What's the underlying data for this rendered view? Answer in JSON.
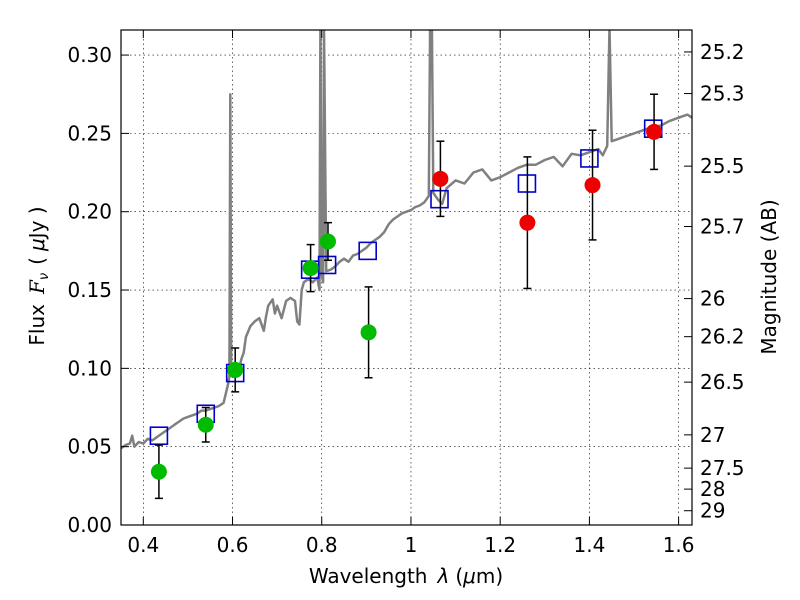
{
  "chart_data": {
    "type": "scatter",
    "xlabel_text": "Wavelength",
    "xlabel_symbol": "λ",
    "xlabel_unit_open": "(",
    "xlabel_unit_mu": "μ",
    "xlabel_unit_rest": "m)",
    "ylabel_text": "Flux",
    "ylabel_symbol_F": "F",
    "ylabel_symbol_sub": "ν",
    "ylabel_unit_open": "(",
    "ylabel_unit_mu": "μ",
    "ylabel_unit_rest": "Jy )",
    "y2label": "Magnitude (AB)",
    "xlim": [
      0.35,
      1.63
    ],
    "ylim": [
      0.0,
      0.316
    ],
    "grid": true,
    "x_ticks": [
      {
        "value": 0.4,
        "label": "0.4"
      },
      {
        "value": 0.6,
        "label": "0.6"
      },
      {
        "value": 0.8,
        "label": "0.8"
      },
      {
        "value": 1.0,
        "label": "1"
      },
      {
        "value": 1.2,
        "label": "1.2"
      },
      {
        "value": 1.4,
        "label": "1.4"
      },
      {
        "value": 1.6,
        "label": "1.6"
      }
    ],
    "y_ticks": [
      {
        "value": 0.0,
        "label": "0.00"
      },
      {
        "value": 0.05,
        "label": "0.05"
      },
      {
        "value": 0.1,
        "label": "0.10"
      },
      {
        "value": 0.15,
        "label": "0.15"
      },
      {
        "value": 0.2,
        "label": "0.20"
      },
      {
        "value": 0.25,
        "label": "0.25"
      },
      {
        "value": 0.3,
        "label": "0.30"
      }
    ],
    "y2_ticks": [
      {
        "value": 25.2,
        "label": "25.2"
      },
      {
        "value": 25.3,
        "label": "25.3"
      },
      {
        "value": 25.5,
        "label": "25.5"
      },
      {
        "value": 25.7,
        "label": "25.7"
      },
      {
        "value": 26.0,
        "label": "26"
      },
      {
        "value": 26.2,
        "label": "26.2"
      },
      {
        "value": 26.5,
        "label": "26.5"
      },
      {
        "value": 27.0,
        "label": "27"
      },
      {
        "value": 27.5,
        "label": "27.5"
      },
      {
        "value": 28.0,
        "label": "28"
      },
      {
        "value": 29.0,
        "label": "29"
      }
    ],
    "colors": {
      "sed": "#808080",
      "model_box": "#0000cc",
      "green": "#00bb00",
      "red": "#ee0000",
      "errorbar": "#000000"
    },
    "sed_model": [
      [
        0.35,
        0.049
      ],
      [
        0.36,
        0.051
      ],
      [
        0.37,
        0.052
      ],
      [
        0.375,
        0.057
      ],
      [
        0.38,
        0.05
      ],
      [
        0.39,
        0.053
      ],
      [
        0.4,
        0.052
      ],
      [
        0.41,
        0.055
      ],
      [
        0.42,
        0.054
      ],
      [
        0.43,
        0.056
      ],
      [
        0.44,
        0.058
      ],
      [
        0.45,
        0.06
      ],
      [
        0.46,
        0.062
      ],
      [
        0.47,
        0.064
      ],
      [
        0.48,
        0.066
      ],
      [
        0.49,
        0.068
      ],
      [
        0.5,
        0.069
      ],
      [
        0.51,
        0.07
      ],
      [
        0.52,
        0.071
      ],
      [
        0.53,
        0.073
      ],
      [
        0.54,
        0.073
      ],
      [
        0.55,
        0.074
      ],
      [
        0.56,
        0.075
      ],
      [
        0.57,
        0.076
      ],
      [
        0.58,
        0.078
      ],
      [
        0.59,
        0.09
      ],
      [
        0.593,
        0.095
      ],
      [
        0.595,
        0.275
      ],
      [
        0.597,
        0.095
      ],
      [
        0.6,
        0.096
      ],
      [
        0.61,
        0.097
      ],
      [
        0.615,
        0.1
      ],
      [
        0.62,
        0.106
      ],
      [
        0.625,
        0.11
      ],
      [
        0.63,
        0.12
      ],
      [
        0.64,
        0.127
      ],
      [
        0.65,
        0.13
      ],
      [
        0.66,
        0.132
      ],
      [
        0.67,
        0.124
      ],
      [
        0.675,
        0.133
      ],
      [
        0.68,
        0.14
      ],
      [
        0.69,
        0.144
      ],
      [
        0.695,
        0.135
      ],
      [
        0.7,
        0.14
      ],
      [
        0.71,
        0.132
      ],
      [
        0.72,
        0.143
      ],
      [
        0.73,
        0.145
      ],
      [
        0.74,
        0.143
      ],
      [
        0.745,
        0.13
      ],
      [
        0.75,
        0.128
      ],
      [
        0.755,
        0.15
      ],
      [
        0.76,
        0.155
      ],
      [
        0.77,
        0.157
      ],
      [
        0.78,
        0.155
      ],
      [
        0.79,
        0.158
      ],
      [
        0.795,
        0.15
      ],
      [
        0.797,
        0.318
      ],
      [
        0.8,
        0.16
      ],
      [
        0.803,
        0.155
      ],
      [
        0.805,
        0.318
      ],
      [
        0.81,
        0.162
      ],
      [
        0.82,
        0.163
      ],
      [
        0.83,
        0.165
      ],
      [
        0.84,
        0.168
      ],
      [
        0.85,
        0.17
      ],
      [
        0.86,
        0.168
      ],
      [
        0.87,
        0.172
      ],
      [
        0.88,
        0.173
      ],
      [
        0.89,
        0.175
      ],
      [
        0.9,
        0.177
      ],
      [
        0.91,
        0.18
      ],
      [
        0.92,
        0.182
      ],
      [
        0.93,
        0.184
      ],
      [
        0.94,
        0.187
      ],
      [
        0.95,
        0.192
      ],
      [
        0.96,
        0.195
      ],
      [
        0.97,
        0.197
      ],
      [
        0.98,
        0.199
      ],
      [
        0.99,
        0.2
      ],
      [
        1.0,
        0.201
      ],
      [
        1.01,
        0.203
      ],
      [
        1.02,
        0.204
      ],
      [
        1.03,
        0.206
      ],
      [
        1.04,
        0.21
      ],
      [
        1.043,
        0.318
      ],
      [
        1.047,
        0.318
      ],
      [
        1.05,
        0.212
      ],
      [
        1.06,
        0.208
      ],
      [
        1.07,
        0.205
      ],
      [
        1.08,
        0.215
      ],
      [
        1.1,
        0.22
      ],
      [
        1.12,
        0.218
      ],
      [
        1.14,
        0.225
      ],
      [
        1.16,
        0.227
      ],
      [
        1.18,
        0.22
      ],
      [
        1.2,
        0.222
      ],
      [
        1.22,
        0.225
      ],
      [
        1.24,
        0.228
      ],
      [
        1.26,
        0.23
      ],
      [
        1.28,
        0.23
      ],
      [
        1.3,
        0.233
      ],
      [
        1.32,
        0.235
      ],
      [
        1.34,
        0.229
      ],
      [
        1.36,
        0.237
      ],
      [
        1.38,
        0.236
      ],
      [
        1.4,
        0.238
      ],
      [
        1.42,
        0.24
      ],
      [
        1.43,
        0.236
      ],
      [
        1.44,
        0.242
      ],
      [
        1.445,
        0.318
      ],
      [
        1.45,
        0.245
      ],
      [
        1.46,
        0.246
      ],
      [
        1.48,
        0.248
      ],
      [
        1.5,
        0.25
      ],
      [
        1.52,
        0.252
      ],
      [
        1.54,
        0.254
      ],
      [
        1.56,
        0.255
      ],
      [
        1.58,
        0.258
      ],
      [
        1.6,
        0.26
      ],
      [
        1.62,
        0.262
      ],
      [
        1.63,
        0.26
      ]
    ],
    "model_boxes": [
      {
        "x": 0.435,
        "y": 0.057
      },
      {
        "x": 0.54,
        "y": 0.071
      },
      {
        "x": 0.606,
        "y": 0.097
      },
      {
        "x": 0.774,
        "y": 0.163
      },
      {
        "x": 0.812,
        "y": 0.166
      },
      {
        "x": 0.903,
        "y": 0.175
      },
      {
        "x": 1.064,
        "y": 0.208
      },
      {
        "x": 1.26,
        "y": 0.218
      },
      {
        "x": 1.4,
        "y": 0.234
      },
      {
        "x": 1.543,
        "y": 0.253
      }
    ],
    "photometry": [
      {
        "x": 0.435,
        "y": 0.034,
        "err": 0.017,
        "color": "green"
      },
      {
        "x": 0.54,
        "y": 0.064,
        "err": 0.011,
        "color": "green"
      },
      {
        "x": 0.606,
        "y": 0.099,
        "err": 0.014,
        "color": "green"
      },
      {
        "x": 0.775,
        "y": 0.164,
        "err": 0.015,
        "color": "green"
      },
      {
        "x": 0.814,
        "y": 0.181,
        "err": 0.012,
        "color": "green"
      },
      {
        "x": 0.905,
        "y": 0.123,
        "err": 0.029,
        "color": "green"
      },
      {
        "x": 1.066,
        "y": 0.221,
        "err": 0.024,
        "color": "red"
      },
      {
        "x": 1.261,
        "y": 0.193,
        "err": 0.042,
        "color": "red"
      },
      {
        "x": 1.407,
        "y": 0.217,
        "err": 0.035,
        "color": "red"
      },
      {
        "x": 1.545,
        "y": 0.251,
        "err": 0.024,
        "color": "red"
      }
    ]
  }
}
